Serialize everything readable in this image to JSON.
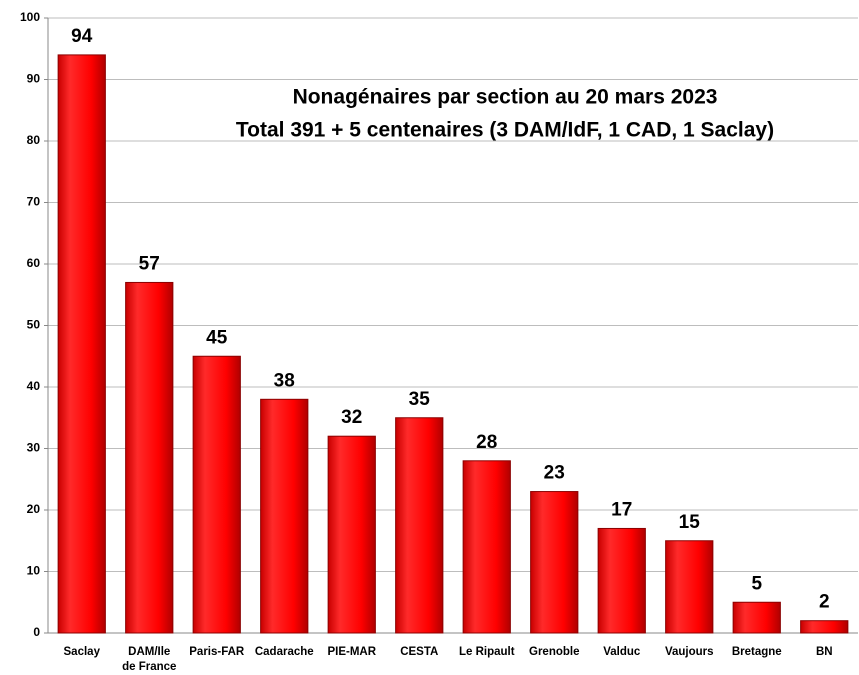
{
  "chart_data": {
    "type": "bar",
    "title": "Nonagénaires par section au 20 mars 2023",
    "subtitle": "Total 391 + 5 centenaires (3 DAM/IdF, 1 CAD, 1 Saclay)",
    "categories": [
      "Saclay",
      "DAM/Ile\nde France",
      "Paris-FAR",
      "Cadarache",
      "PIE-MAR",
      "CESTA",
      "Le Ripault",
      "Grenoble",
      "Valduc",
      "Vaujours",
      "Bretagne",
      "BN"
    ],
    "values": [
      94,
      57,
      45,
      38,
      32,
      35,
      28,
      23,
      17,
      15,
      5,
      2
    ],
    "color": "#ff0000",
    "ylim": [
      0,
      100
    ],
    "yticks": [
      0,
      10,
      20,
      30,
      40,
      50,
      60,
      70,
      80,
      90,
      100
    ],
    "grid": true
  }
}
